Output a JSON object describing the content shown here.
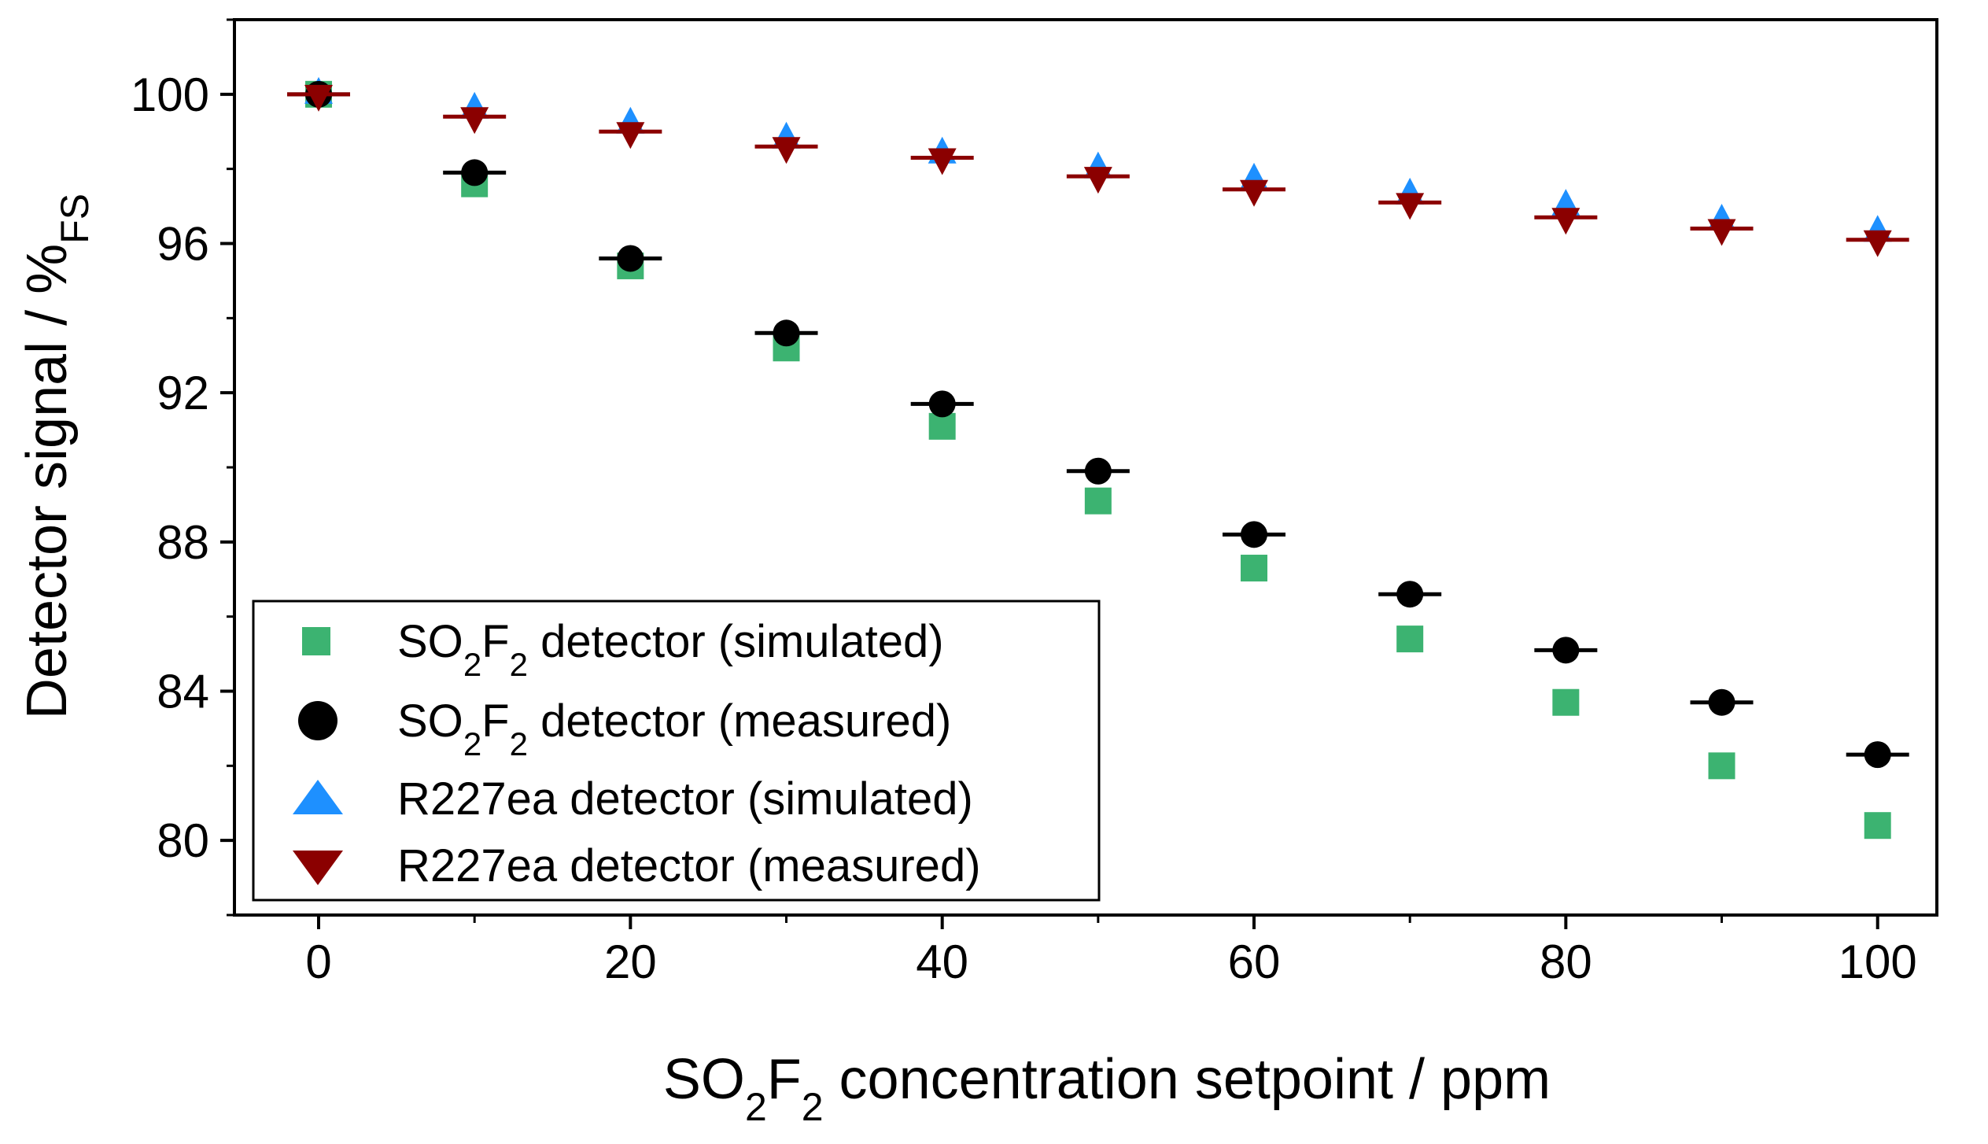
{
  "chart_data": {
    "type": "scatter",
    "title": "",
    "xlabel": {
      "main": "SO",
      "sub1": "2",
      "mid": "F",
      "sub2": "2",
      "tail": " concentration setpoint / ppm"
    },
    "ylabel": {
      "main": "Detector signal / %",
      "sub": "FS"
    },
    "xlim": [
      -5.4,
      103.8
    ],
    "ylim": [
      78,
      102
    ],
    "xticks": [
      0,
      20,
      40,
      60,
      80,
      100
    ],
    "xtick_labels": [
      "0",
      "20",
      "40",
      "60",
      "80",
      "100"
    ],
    "yticks": [
      80,
      84,
      88,
      92,
      96,
      100
    ],
    "ytick_labels": [
      "80",
      "84",
      "88",
      "92",
      "96",
      "100"
    ],
    "legend_position": "bottom-left",
    "x": [
      0,
      10,
      20,
      30,
      40,
      50,
      60,
      70,
      80,
      90,
      100
    ],
    "series": [
      {
        "id": "so2f2-sim",
        "name": {
          "a": "SO",
          "s1": "2",
          "b": "F",
          "s2": "2",
          "c": " detector (simulated)"
        },
        "marker": "square",
        "color": "#3cb371",
        "values": [
          100.0,
          97.6,
          95.4,
          93.2,
          91.1,
          89.1,
          87.3,
          85.4,
          83.7,
          82.0,
          80.4
        ]
      },
      {
        "id": "so2f2-meas",
        "name": {
          "a": "SO",
          "s1": "2",
          "b": "F",
          "s2": "2",
          "c": " detector (measured)"
        },
        "marker": "circle",
        "color": "#000000",
        "errorbars": true,
        "values": [
          100.0,
          97.9,
          95.6,
          93.6,
          91.7,
          89.9,
          88.2,
          86.6,
          85.1,
          83.7,
          82.3
        ]
      },
      {
        "id": "r227-sim",
        "name": {
          "a": "R227ea detector (simulated)"
        },
        "marker": "triangle-up",
        "color": "#1e90ff",
        "values": [
          100.0,
          99.6,
          99.2,
          98.8,
          98.4,
          98.0,
          97.7,
          97.3,
          97.0,
          96.6,
          96.3
        ]
      },
      {
        "id": "r227-meas",
        "name": {
          "a": "R227ea detector (measured)"
        },
        "marker": "triangle-down",
        "color": "#8b0000",
        "errorbars": true,
        "values": [
          100.0,
          99.4,
          99.0,
          98.6,
          98.3,
          97.8,
          97.45,
          97.1,
          96.7,
          96.4,
          96.1
        ]
      }
    ]
  }
}
